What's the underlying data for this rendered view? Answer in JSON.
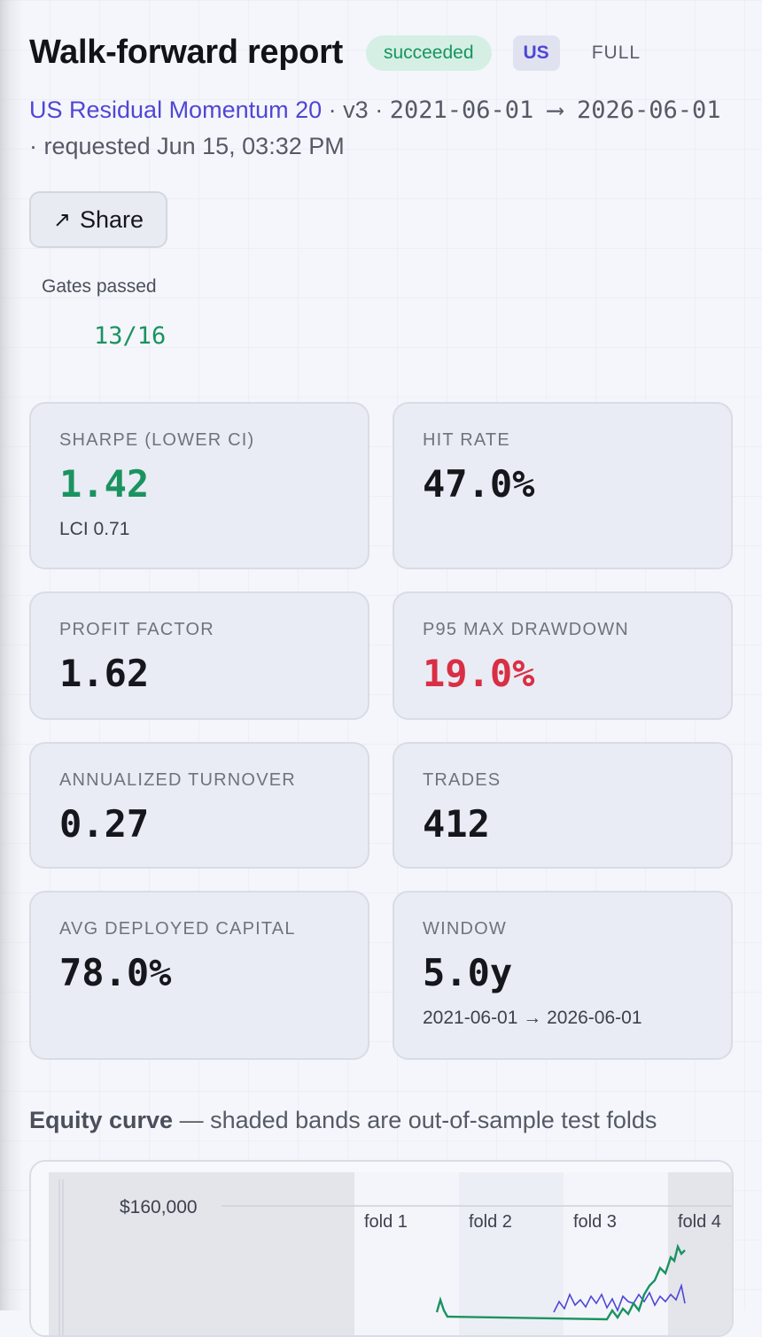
{
  "header": {
    "title": "Walk-forward report",
    "status_badge": "succeeded",
    "region_badge": "US",
    "mode_badge": "FULL"
  },
  "subtitle": {
    "strategy_name": "US Residual Momentum 20",
    "sep1": " · ",
    "version": "v3",
    "sep2": " · ",
    "date_range": "2021-06-01 ⟶ 2026-06-01",
    "sep3": " · ",
    "requested": "requested Jun 15, 03:32 PM"
  },
  "share_button": {
    "icon": "arrow-up-right-icon",
    "label": "Share"
  },
  "gates": {
    "label": "Gates passed",
    "value": "13/16"
  },
  "metrics": [
    {
      "label": "SHARPE (LOWER CI)",
      "value": "1.42",
      "sub": "LCI 0.71",
      "color": "#1a9360"
    },
    {
      "label": "HIT RATE",
      "value": "47.0%",
      "sub": "",
      "color": "#15171c"
    },
    {
      "label": "PROFIT FACTOR",
      "value": "1.62",
      "sub": "",
      "color": "#15171c"
    },
    {
      "label": "P95 MAX DRAWDOWN",
      "value": "19.0%",
      "sub": "",
      "color": "#d92f44"
    },
    {
      "label": "ANNUALIZED TURNOVER",
      "value": "0.27",
      "sub": "",
      "color": "#15171c"
    },
    {
      "label": "TRADES",
      "value": "412",
      "sub": "",
      "color": "#15171c"
    },
    {
      "label": "AVG DEPLOYED CAPITAL",
      "value": "78.0%",
      "sub": "",
      "color": "#15171c"
    },
    {
      "label": "WINDOW",
      "value": "5.0y",
      "sub": "2021-06-01 → 2026-06-01",
      "color": "#15171c"
    }
  ],
  "equity_section": {
    "title": "Equity curve",
    "description": " — shaded bands are out-of-sample test folds"
  },
  "equity_chart": {
    "y_tick_label": "$160,000",
    "fold_labels": [
      "fold 1",
      "fold 2",
      "fold 3",
      "fold 4"
    ],
    "series_colors": {
      "strategy": "#1a9360",
      "benchmark": "#4f46d6"
    }
  }
}
